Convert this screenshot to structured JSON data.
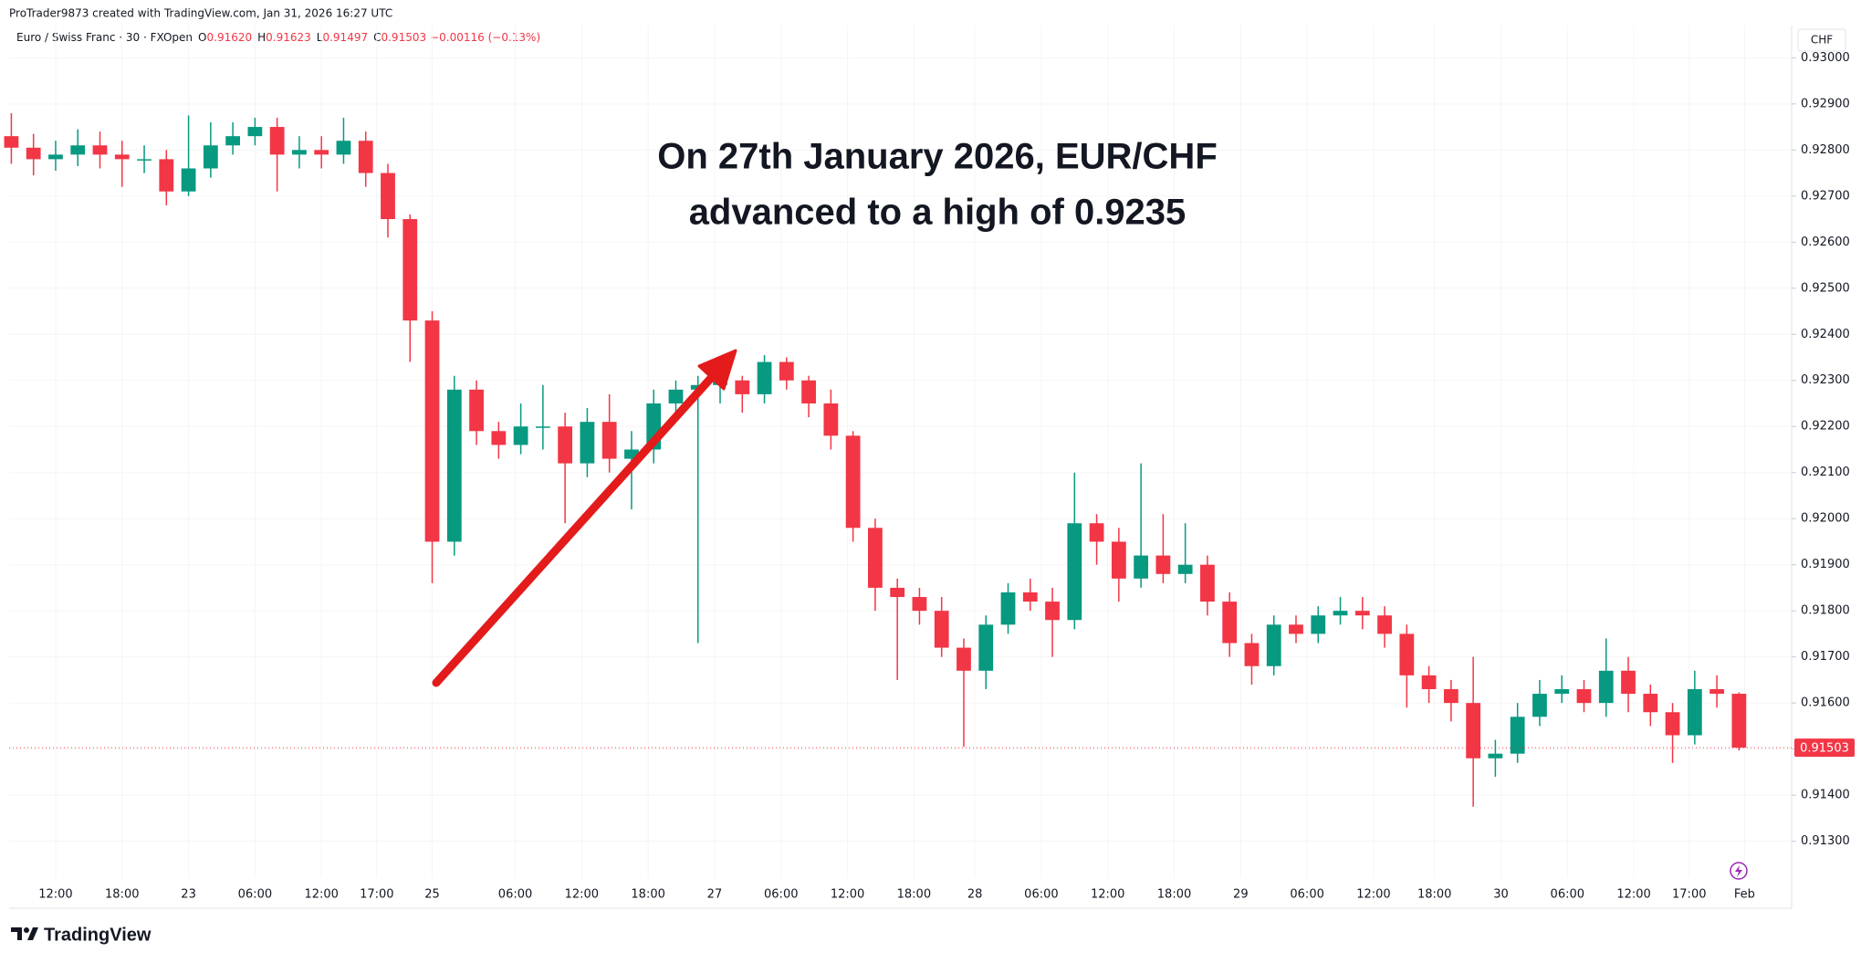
{
  "header": {
    "title": "ProTrader9873 created with TradingView.com, Jan 31, 2026 16:27 UTC",
    "symbol": "Euro / Swiss Franc · 30 · FXOpen",
    "fields": [
      {
        "label": "O",
        "value": "0.91620"
      },
      {
        "label": "H",
        "value": "0.91623"
      },
      {
        "label": "L",
        "value": "0.91497"
      },
      {
        "label": "C",
        "value": "0.91503"
      }
    ],
    "change": "−0.00116 (−0.13%)",
    "currency": "CHF"
  },
  "footer": {
    "brand": "TradingView"
  },
  "chart_data": {
    "type": "candlestick",
    "annotation": [
      "On 27th January 2026, EUR/CHF",
      "advanced to a high of 0.9235"
    ],
    "up_color": "#089981",
    "down_color": "#f23645",
    "x": [
      0,
      4,
      8,
      12,
      16,
      20,
      24,
      28,
      32,
      36,
      40,
      44,
      48,
      52,
      56,
      60,
      64,
      68,
      72,
      76,
      80,
      84,
      88,
      92,
      96,
      100,
      104,
      108,
      112,
      116,
      120,
      124,
      128,
      132,
      136,
      140,
      144,
      148,
      152,
      156,
      160,
      164,
      168,
      172,
      176,
      180,
      184,
      188,
      192,
      196,
      200,
      204,
      208,
      212,
      216,
      220,
      224,
      228,
      232,
      236,
      240,
      244,
      248,
      252,
      256,
      260,
      264,
      268,
      272,
      276,
      280,
      284,
      288,
      292,
      296,
      300,
      304,
      308,
      312
    ],
    "open": [
      0.9283,
      0.92805,
      0.9278,
      0.9279,
      0.9281,
      0.9279,
      0.9278,
      0.9278,
      0.9271,
      0.9276,
      0.9281,
      0.9283,
      0.9285,
      0.9279,
      0.928,
      0.9279,
      0.9282,
      0.9275,
      0.9265,
      0.9243,
      0.9195,
      0.9228,
      0.9219,
      0.9216,
      0.922,
      0.922,
      0.9212,
      0.9221,
      0.9213,
      0.9215,
      0.9225,
      0.9228,
      0.9229,
      0.923,
      0.9227,
      0.9234,
      0.923,
      0.9225,
      0.9218,
      0.9198,
      0.9185,
      0.9183,
      0.918,
      0.9172,
      0.9167,
      0.9177,
      0.9184,
      0.9182,
      0.9178,
      0.9199,
      0.9195,
      0.9187,
      0.9192,
      0.9188,
      0.919,
      0.9182,
      0.9173,
      0.9168,
      0.9177,
      0.9175,
      0.9179,
      0.918,
      0.9179,
      0.9175,
      0.9166,
      0.9163,
      0.916,
      0.9148,
      0.9149,
      0.9157,
      0.9162,
      0.9163,
      0.916,
      0.9167,
      0.9162,
      0.9158,
      0.9153,
      0.9163,
      0.9162
    ],
    "high": [
      0.9288,
      0.92835,
      0.9282,
      0.92845,
      0.9284,
      0.9282,
      0.9281,
      0.928,
      0.92875,
      0.9286,
      0.9286,
      0.9287,
      0.9287,
      0.9283,
      0.9283,
      0.9287,
      0.9284,
      0.9277,
      0.9266,
      0.9245,
      0.9231,
      0.923,
      0.9221,
      0.9225,
      0.9229,
      0.9223,
      0.9224,
      0.9227,
      0.9219,
      0.9228,
      0.923,
      0.9231,
      0.9232,
      0.9231,
      0.92355,
      0.9235,
      0.9231,
      0.9228,
      0.9219,
      0.92,
      0.9187,
      0.9185,
      0.9183,
      0.9174,
      0.9179,
      0.9186,
      0.9187,
      0.9185,
      0.921,
      0.9201,
      0.9198,
      0.9212,
      0.9201,
      0.9199,
      0.9192,
      0.9184,
      0.9175,
      0.9179,
      0.9179,
      0.9181,
      0.9183,
      0.9183,
      0.9181,
      0.9177,
      0.9168,
      0.9165,
      0.917,
      0.9152,
      0.916,
      0.9165,
      0.9166,
      0.9165,
      0.9174,
      0.917,
      0.9164,
      0.916,
      0.9167,
      0.9166,
      0.91623
    ],
    "low": [
      0.9277,
      0.92745,
      0.92755,
      0.92765,
      0.9276,
      0.9272,
      0.9275,
      0.9268,
      0.927,
      0.9274,
      0.9279,
      0.9281,
      0.9271,
      0.9276,
      0.9276,
      0.9277,
      0.9272,
      0.9261,
      0.9234,
      0.9186,
      0.9192,
      0.9216,
      0.9213,
      0.9214,
      0.9215,
      0.9199,
      0.9209,
      0.921,
      0.9202,
      0.9212,
      0.9222,
      0.9173,
      0.9225,
      0.9223,
      0.9225,
      0.9228,
      0.9222,
      0.9215,
      0.9195,
      0.918,
      0.9165,
      0.9177,
      0.917,
      0.91505,
      0.9163,
      0.9175,
      0.918,
      0.917,
      0.9176,
      0.919,
      0.9182,
      0.9185,
      0.9186,
      0.9186,
      0.9179,
      0.917,
      0.9164,
      0.9166,
      0.9173,
      0.9173,
      0.9177,
      0.9176,
      0.9172,
      0.9159,
      0.916,
      0.9156,
      0.91375,
      0.9144,
      0.9147,
      0.9155,
      0.916,
      0.9158,
      0.9157,
      0.9158,
      0.9155,
      0.9147,
      0.9151,
      0.9159,
      0.91497
    ],
    "close": [
      0.92805,
      0.9278,
      0.9279,
      0.9281,
      0.9279,
      0.9278,
      0.9278,
      0.9271,
      0.9276,
      0.9281,
      0.9283,
      0.9285,
      0.9279,
      0.928,
      0.9279,
      0.9282,
      0.9275,
      0.9265,
      0.9243,
      0.9195,
      0.9228,
      0.9219,
      0.9216,
      0.922,
      0.922,
      0.9212,
      0.9221,
      0.9213,
      0.9215,
      0.9225,
      0.9228,
      0.9229,
      0.923,
      0.9227,
      0.9234,
      0.923,
      0.9225,
      0.9218,
      0.9198,
      0.9185,
      0.9183,
      0.918,
      0.9172,
      0.9167,
      0.9177,
      0.9184,
      0.9182,
      0.9178,
      0.9199,
      0.9195,
      0.9187,
      0.9192,
      0.9188,
      0.919,
      0.9182,
      0.9173,
      0.9168,
      0.9177,
      0.9175,
      0.9179,
      0.918,
      0.9179,
      0.9175,
      0.9166,
      0.9163,
      0.916,
      0.9148,
      0.9149,
      0.9157,
      0.9162,
      0.9163,
      0.916,
      0.9167,
      0.9162,
      0.9158,
      0.9153,
      0.9163,
      0.9162,
      0.91503
    ],
    "xlim": [
      -0.4,
      321.5
    ],
    "xticks": [
      {
        "value": 8,
        "label": "12:00"
      },
      {
        "value": 20,
        "label": "18:00"
      },
      {
        "value": 32,
        "label": "23"
      },
      {
        "value": 44,
        "label": "06:00"
      },
      {
        "value": 56,
        "label": "12:00"
      },
      {
        "value": 66,
        "label": "17:00"
      },
      {
        "value": 76,
        "label": "25"
      },
      {
        "value": 91,
        "label": "06:00"
      },
      {
        "value": 103,
        "label": "12:00"
      },
      {
        "value": 115,
        "label": "18:00"
      },
      {
        "value": 127,
        "label": "27"
      },
      {
        "value": 139,
        "label": "06:00"
      },
      {
        "value": 151,
        "label": "12:00"
      },
      {
        "value": 163,
        "label": "18:00"
      },
      {
        "value": 174,
        "label": "28"
      },
      {
        "value": 186,
        "label": "06:00"
      },
      {
        "value": 198,
        "label": "12:00"
      },
      {
        "value": 210,
        "label": "18:00"
      },
      {
        "value": 222,
        "label": "29"
      },
      {
        "value": 234,
        "label": "06:00"
      },
      {
        "value": 246,
        "label": "12:00"
      },
      {
        "value": 257,
        "label": "18:00"
      },
      {
        "value": 269,
        "label": "30"
      },
      {
        "value": 281,
        "label": "06:00"
      },
      {
        "value": 293,
        "label": "12:00"
      },
      {
        "value": 303,
        "label": "17:00"
      },
      {
        "value": 313,
        "label": "Feb"
      }
    ],
    "ylim": [
      0.9122,
      0.9307
    ],
    "yticks": [
      {
        "value": 0.93,
        "label": "0.93000"
      },
      {
        "value": 0.929,
        "label": "0.92900"
      },
      {
        "value": 0.928,
        "label": "0.92800"
      },
      {
        "value": 0.927,
        "label": "0.92700"
      },
      {
        "value": 0.926,
        "label": "0.92600"
      },
      {
        "value": 0.925,
        "label": "0.92500"
      },
      {
        "value": 0.924,
        "label": "0.92400"
      },
      {
        "value": 0.923,
        "label": "0.92300"
      },
      {
        "value": 0.922,
        "label": "0.92200"
      },
      {
        "value": 0.921,
        "label": "0.92100"
      },
      {
        "value": 0.92,
        "label": "0.92000"
      },
      {
        "value": 0.919,
        "label": "0.91900"
      },
      {
        "value": 0.918,
        "label": "0.91800"
      },
      {
        "value": 0.917,
        "label": "0.91700"
      },
      {
        "value": 0.916,
        "label": "0.91600"
      },
      {
        "value": 0.915,
        "label": "0.91500"
      },
      {
        "value": 0.914,
        "label": "0.91400"
      },
      {
        "value": 0.913,
        "label": "0.91300"
      }
    ],
    "last_price": {
      "value": 0.91503,
      "label": "0.91503"
    },
    "last_price_color": "#f23645"
  }
}
